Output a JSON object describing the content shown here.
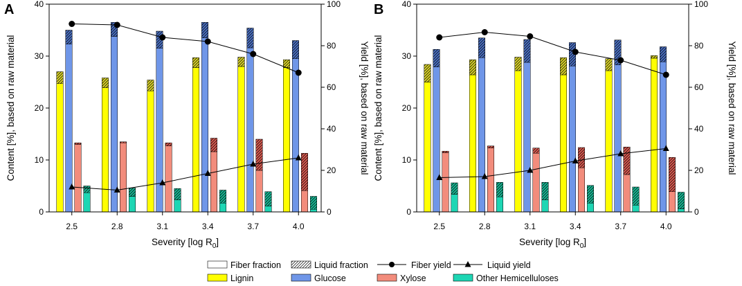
{
  "figure": {
    "panels": [
      "A",
      "B"
    ],
    "xlabel": "Severity [log R",
    "xlabel_sub": "0",
    "xlabel_end": "]",
    "ylabel_left": "Content [%], based on raw material",
    "ylabel_right": "Yield [%], based on raw material"
  },
  "legend": {
    "fiber_fraction": "Fiber fraction",
    "liquid_fraction": "Liquid fraction",
    "fiber_yield": "Fiber yield",
    "liquid_yield": "Liquid yield",
    "lignin": "Lignin",
    "glucose": "Glucose",
    "xylose": "Xylose",
    "other_hemicelluloses": "Other Hemicelluloses"
  },
  "colors": {
    "lignin": "#ffff00",
    "glucose": "#6f96e8",
    "xylose": "#f28c7c",
    "other": "#1ed6b4",
    "lignin_liquid": "#d8d22a",
    "glucose_liquid": "#4a6fc0",
    "xylose_liquid": "#d85a50",
    "other_liquid": "#19b895"
  },
  "chart_data": [
    {
      "panel": "A",
      "type": "bar",
      "categories": [
        "2.5",
        "2.8",
        "3.1",
        "3.4",
        "3.7",
        "4.0"
      ],
      "ylim_left": [
        0,
        40
      ],
      "yticks_left": [
        "0",
        "10",
        "20",
        "30",
        "40"
      ],
      "ylim_right": [
        0,
        100
      ],
      "yticks_right": [
        "0",
        "20",
        "40",
        "60",
        "80",
        "100"
      ],
      "series": [
        {
          "name": "Lignin",
          "fiber": [
            24.7,
            23.9,
            23.3,
            27.8,
            28.0,
            27.8
          ],
          "liquid": [
            2.3,
            1.9,
            2.1,
            1.9,
            1.8,
            1.5
          ]
        },
        {
          "name": "Glucose",
          "fiber": [
            32.3,
            33.8,
            31.5,
            33.5,
            31.6,
            29.5
          ],
          "liquid": [
            2.7,
            2.7,
            3.3,
            3.0,
            3.8,
            3.5
          ]
        },
        {
          "name": "Xylose",
          "fiber": [
            13.0,
            13.3,
            12.7,
            11.6,
            8.0,
            4.1
          ],
          "liquid": [
            0.3,
            0.2,
            0.6,
            2.6,
            6.0,
            7.2
          ]
        },
        {
          "name": "Other Hemicelluloses",
          "fiber": [
            3.7,
            3.0,
            2.3,
            1.7,
            1.1,
            0.5
          ],
          "liquid": [
            1.3,
            1.6,
            2.2,
            2.5,
            2.8,
            2.5
          ]
        }
      ],
      "lines": [
        {
          "name": "Fiber yield",
          "values": [
            90.5,
            90.0,
            84.0,
            82.0,
            76.0,
            67.0
          ]
        },
        {
          "name": "Liquid yield",
          "values": [
            12.0,
            10.5,
            14.0,
            18.5,
            23.0,
            26.0
          ]
        }
      ]
    },
    {
      "panel": "B",
      "type": "bar",
      "categories": [
        "2.5",
        "2.8",
        "3.1",
        "3.4",
        "3.7",
        "4.0"
      ],
      "ylim_left": [
        0,
        40
      ],
      "yticks_left": [
        "0",
        "10",
        "20",
        "30",
        "40"
      ],
      "ylim_right": [
        0,
        100
      ],
      "yticks_right": [
        "0",
        "20",
        "40",
        "60",
        "80",
        "100"
      ],
      "series": [
        {
          "name": "Lignin",
          "fiber": [
            25.0,
            26.4,
            27.2,
            26.4,
            27.2,
            29.6
          ],
          "liquid": [
            3.4,
            2.9,
            2.6,
            3.3,
            2.3,
            0.5
          ]
        },
        {
          "name": "Glucose",
          "fiber": [
            27.9,
            29.7,
            28.8,
            28.1,
            28.3,
            28.9
          ],
          "liquid": [
            3.4,
            3.8,
            4.4,
            4.5,
            4.8,
            2.9
          ]
        },
        {
          "name": "Xylose",
          "fiber": [
            11.4,
            12.3,
            11.3,
            8.5,
            7.2,
            3.9
          ],
          "liquid": [
            0.3,
            0.4,
            1.0,
            3.9,
            5.3,
            6.6
          ]
        },
        {
          "name": "Other Hemicelluloses",
          "fiber": [
            3.4,
            2.9,
            2.3,
            1.7,
            1.3,
            0.6
          ],
          "liquid": [
            2.2,
            2.8,
            3.4,
            3.4,
            3.5,
            3.2
          ]
        }
      ],
      "lines": [
        {
          "name": "Fiber yield",
          "values": [
            84.0,
            86.5,
            84.5,
            77.0,
            73.0,
            66.0
          ]
        },
        {
          "name": "Liquid yield",
          "values": [
            16.5,
            17.0,
            20.0,
            24.5,
            28.0,
            30.5
          ]
        }
      ]
    }
  ]
}
